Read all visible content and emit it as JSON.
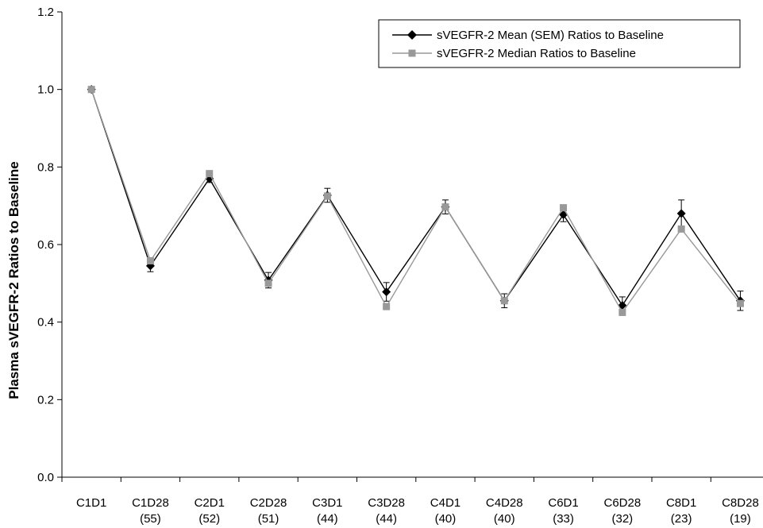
{
  "chart_data": {
    "type": "line",
    "title": "",
    "xlabel": "",
    "ylabel": "Plasma sVEGFR-2 Ratios to Baseline",
    "ylim": [
      0,
      1.2
    ],
    "yticks": [
      "0.0",
      "0.2",
      "0.4",
      "0.6",
      "0.8",
      "1.0",
      "1.2"
    ],
    "grid": false,
    "legend_position": "top-right",
    "categories": [
      {
        "label": "C1D1",
        "n": ""
      },
      {
        "label": "C1D28",
        "n": "(55)"
      },
      {
        "label": "C2D1",
        "n": "(52)"
      },
      {
        "label": "C2D28",
        "n": "(51)"
      },
      {
        "label": "C3D1",
        "n": "(44)"
      },
      {
        "label": "C3D28",
        "n": "(44)"
      },
      {
        "label": "C4D1",
        "n": "(40)"
      },
      {
        "label": "C4D28",
        "n": "(40)"
      },
      {
        "label": "C6D1",
        "n": "(33)"
      },
      {
        "label": "C6D28",
        "n": "(32)"
      },
      {
        "label": "C8D1",
        "n": "(23)"
      },
      {
        "label": "C8D28",
        "n": "(19)"
      }
    ],
    "series": [
      {
        "name": "sVEGFR-2 Mean (SEM) Ratios to Baseline",
        "color": "#000000",
        "marker": "diamond",
        "values": [
          1.0,
          0.545,
          0.77,
          0.508,
          0.727,
          0.478,
          0.697,
          0.455,
          0.677,
          0.443,
          0.68,
          0.455
        ],
        "sem": [
          0,
          0.015,
          0.01,
          0.02,
          0.018,
          0.024,
          0.018,
          0.018,
          0.018,
          0.022,
          0.035,
          0.025
        ]
      },
      {
        "name": "sVEGFR-2 Median Ratios to Baseline",
        "color": "#999999",
        "marker": "square",
        "values": [
          1.0,
          0.558,
          0.783,
          0.5,
          0.725,
          0.44,
          0.697,
          0.455,
          0.695,
          0.425,
          0.64,
          0.448
        ]
      }
    ]
  }
}
